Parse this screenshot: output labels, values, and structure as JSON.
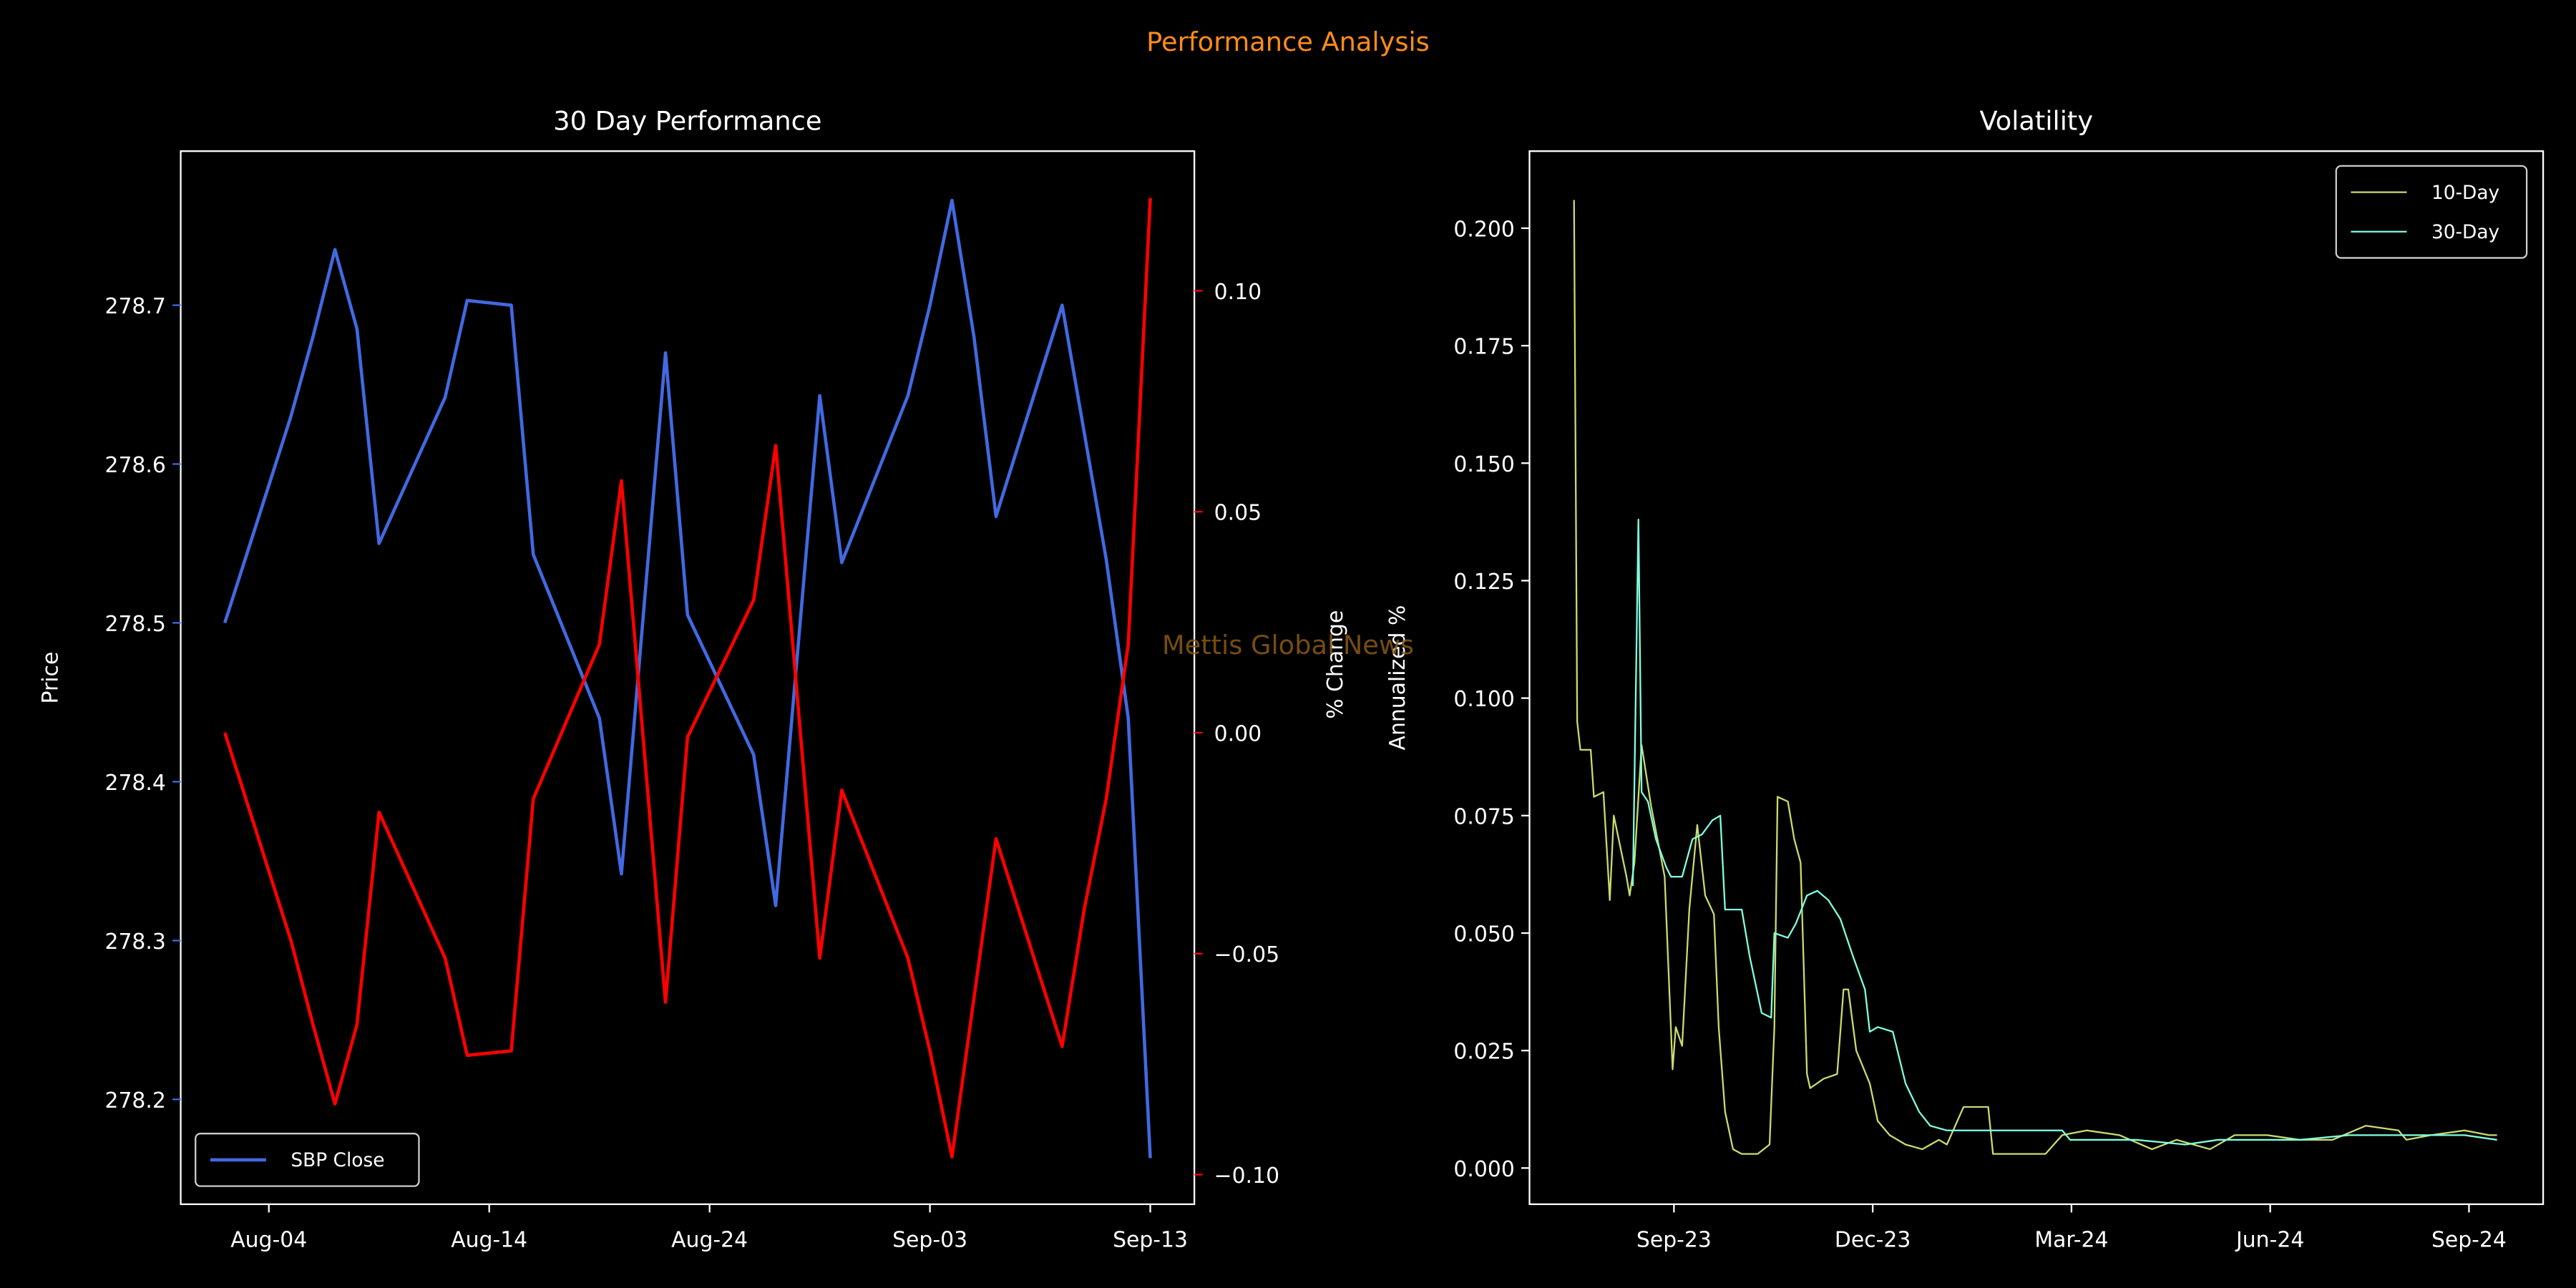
{
  "title": "Performance Analysis",
  "watermark": "Mettis Global News",
  "chart_data": [
    {
      "type": "line",
      "title": "30 Day Performance",
      "ylabel": "Price",
      "y2label": "% Change",
      "x": [
        "Aug-02",
        "Aug-05",
        "Aug-06",
        "Aug-07",
        "Aug-08",
        "Aug-09",
        "Aug-12",
        "Aug-13",
        "Aug-15",
        "Aug-16",
        "Aug-19",
        "Aug-20",
        "Aug-22",
        "Aug-23",
        "Aug-26",
        "Aug-27",
        "Aug-29",
        "Aug-30",
        "Sep-02",
        "Sep-03",
        "Sep-04",
        "Sep-05",
        "Sep-06",
        "Sep-09",
        "Sep-10",
        "Sep-11",
        "Sep-12",
        "Sep-13"
      ],
      "xlim": [
        "Jul-31",
        "Sep-15"
      ],
      "xticks": [
        "Aug-04",
        "Aug-14",
        "Aug-24",
        "Sep-03",
        "Sep-13"
      ],
      "ylim": [
        278.134,
        278.797
      ],
      "yticks": [
        278.2,
        278.3,
        278.4,
        278.5,
        278.6,
        278.7
      ],
      "y2lim": [
        -0.1067,
        0.1316
      ],
      "y2ticks": [
        {
          "value": -0.1,
          "label": "−0.10"
        },
        {
          "value": -0.05,
          "label": "−0.05"
        },
        {
          "value": 0,
          "label": "0.00"
        },
        {
          "value": 0.05,
          "label": "0.05"
        },
        {
          "value": 0.1,
          "label": "0.10"
        }
      ],
      "legend": "lower left",
      "series": [
        {
          "name": "SBP Close",
          "color": "#4169e1",
          "values": [
            278.5,
            278.63,
            278.68,
            278.735,
            278.685,
            278.55,
            278.642,
            278.703,
            278.7,
            278.543,
            278.44,
            278.342,
            278.67,
            278.505,
            278.417,
            278.322,
            278.643,
            278.538,
            278.643,
            278.7,
            278.766,
            278.68,
            278.567,
            278.7,
            278.62,
            278.54,
            278.44,
            278.163
          ]
        },
        {
          "color": "#ff0000",
          "axis": "y2",
          "values": [
            0.0,
            -0.047,
            -0.066,
            -0.084,
            -0.066,
            -0.018,
            -0.051,
            -0.073,
            -0.072,
            -0.015,
            0.02,
            0.057,
            -0.061,
            -0.001,
            0.03,
            0.065,
            -0.051,
            -0.013,
            -0.051,
            -0.072,
            -0.096,
            -0.06,
            -0.024,
            -0.071,
            -0.04,
            -0.015,
            0.02,
            0.121
          ]
        }
      ]
    },
    {
      "type": "line",
      "title": "Volatility",
      "ylabel": "Annualized %",
      "xlim": [
        2023.485,
        2024.76
      ],
      "xticks": [
        {
          "value": 2023.6667,
          "label": "Sep-23"
        },
        {
          "value": 2023.9167,
          "label": "Dec-23"
        },
        {
          "value": 2024.1667,
          "label": "Mar-24"
        },
        {
          "value": 2024.4167,
          "label": "Jun-24"
        },
        {
          "value": 2024.6667,
          "label": "Sep-24"
        }
      ],
      "ylim": [
        -0.0077,
        0.2164
      ],
      "yticks": [
        {
          "value": 0,
          "label": "0.000"
        },
        {
          "value": 0.025,
          "label": "0.025"
        },
        {
          "value": 0.05,
          "label": "0.050"
        },
        {
          "value": 0.075,
          "label": "0.075"
        },
        {
          "value": 0.1,
          "label": "0.100"
        },
        {
          "value": 0.125,
          "label": "0.125"
        },
        {
          "value": 0.15,
          "label": "0.150"
        },
        {
          "value": 0.175,
          "label": "0.175"
        },
        {
          "value": 0.2,
          "label": "0.200"
        }
      ],
      "legend": "upper right",
      "series": [
        {
          "name": "10-Day",
          "color": "#c8dc6e",
          "x": [
            2023.541,
            2023.545,
            2023.549,
            2023.562,
            2023.566,
            2023.578,
            2023.586,
            2023.591,
            2023.607,
            2023.611,
            2023.617,
            2023.626,
            2023.638,
            2023.655,
            2023.665,
            2023.669,
            2023.677,
            2023.686,
            2023.696,
            2023.706,
            2023.717,
            2023.723,
            2023.731,
            2023.741,
            2023.752,
            2023.772,
            2023.787,
            2023.793,
            2023.797,
            2023.81,
            2023.818,
            2023.826,
            2023.834,
            2023.838,
            2023.855,
            2023.872,
            2023.88,
            2023.886,
            2023.896,
            2023.913,
            2023.923,
            2023.938,
            2023.958,
            2023.979,
            2024.0,
            2024.01,
            2024.031,
            2024.062,
            2024.068,
            2024.103,
            2024.134,
            2024.155,
            2024.186,
            2024.227,
            2024.268,
            2024.299,
            2024.341,
            2024.372,
            2024.413,
            2024.454,
            2024.495,
            2024.537,
            2024.578,
            2024.588,
            2024.619,
            2024.661,
            2024.692,
            2024.702
          ],
          "values": [
            0.206,
            0.095,
            0.089,
            0.089,
            0.079,
            0.08,
            0.057,
            0.075,
            0.062,
            0.058,
            0.065,
            0.09,
            0.077,
            0.062,
            0.021,
            0.03,
            0.026,
            0.055,
            0.073,
            0.058,
            0.054,
            0.03,
            0.012,
            0.004,
            0.003,
            0.003,
            0.005,
            0.03,
            0.079,
            0.078,
            0.07,
            0.065,
            0.02,
            0.017,
            0.019,
            0.02,
            0.038,
            0.038,
            0.025,
            0.018,
            0.01,
            0.007,
            0.005,
            0.004,
            0.006,
            0.005,
            0.013,
            0.013,
            0.003,
            0.003,
            0.003,
            0.007,
            0.008,
            0.007,
            0.004,
            0.006,
            0.004,
            0.007,
            0.007,
            0.006,
            0.006,
            0.009,
            0.008,
            0.006,
            0.007,
            0.008,
            0.007,
            0.007
          ]
        },
        {
          "name": "30-Day",
          "color": "#80ffe0",
          "x": [
            2023.615,
            2023.622,
            2023.626,
            2023.634,
            2023.644,
            2023.657,
            2023.663,
            2023.677,
            2023.69,
            2023.702,
            2023.715,
            2023.725,
            2023.731,
            2023.741,
            2023.752,
            2023.762,
            2023.777,
            2023.789,
            2023.793,
            2023.81,
            2023.82,
            2023.834,
            2023.847,
            2023.861,
            2023.876,
            2023.892,
            2023.907,
            2023.913,
            2023.923,
            2023.942,
            2023.958,
            2023.975,
            2023.989,
            2024.01,
            2024.041,
            2024.072,
            2024.103,
            2024.155,
            2024.165,
            2024.206,
            2024.248,
            2024.31,
            2024.351,
            2024.413,
            2024.454,
            2024.516,
            2024.578,
            2024.619,
            2024.661,
            2024.702
          ],
          "values": [
            0.06,
            0.138,
            0.08,
            0.078,
            0.07,
            0.064,
            0.062,
            0.062,
            0.07,
            0.071,
            0.074,
            0.075,
            0.055,
            0.055,
            0.055,
            0.045,
            0.033,
            0.032,
            0.05,
            0.049,
            0.052,
            0.058,
            0.059,
            0.057,
            0.053,
            0.045,
            0.038,
            0.029,
            0.03,
            0.029,
            0.018,
            0.012,
            0.009,
            0.008,
            0.008,
            0.008,
            0.008,
            0.008,
            0.006,
            0.006,
            0.006,
            0.005,
            0.006,
            0.006,
            0.006,
            0.007,
            0.007,
            0.007,
            0.007,
            0.006
          ]
        }
      ]
    }
  ]
}
